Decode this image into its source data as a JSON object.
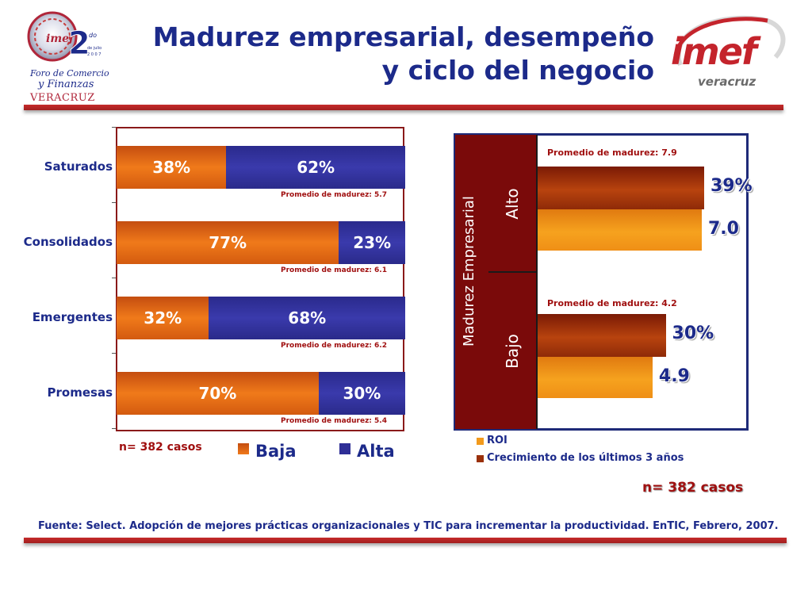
{
  "title": {
    "line1": "Madurez empresarial, desempeño",
    "line2": "y ciclo del negocio"
  },
  "logo_left": {
    "big_number": "2",
    "superscript": "do",
    "small_text": "de julio",
    "year": "2 0 0 7",
    "forum_line1": "Foro de Comercio",
    "forum_line2": "y Finanzas",
    "city": "VERACRUZ"
  },
  "logo_right": {
    "brand": "imef",
    "city": "veracruz"
  },
  "left_chart": {
    "n_label": "n= 382 casos",
    "legend": [
      {
        "label": "Baja",
        "color": "#e8661a"
      },
      {
        "label": "Alta",
        "color": "#2e2e96"
      }
    ]
  },
  "right_chart": {
    "axis_title": "Madurez Empresarial",
    "group_labels": [
      "Alto",
      "Bajo"
    ],
    "legend": [
      {
        "label": "ROI",
        "color": "#f29a1c"
      },
      {
        "label": "Crecimiento de los últimos 3 años",
        "color": "#9a300a"
      }
    ],
    "n_label": "n= 382 casos"
  },
  "footer": "Fuente: Select. Adopción de mejores prácticas organizacionales y TIC para incrementar la productividad. EnTIC, Febrero, 2007.",
  "chart_data": [
    {
      "type": "bar",
      "orientation": "horizontal",
      "stacked": true,
      "percent": true,
      "categories": [
        "Saturados",
        "Consolidados",
        "Emergentes",
        "Promesas"
      ],
      "series": [
        {
          "name": "Baja",
          "values": [
            38,
            77,
            32,
            70
          ],
          "labels": [
            "38%",
            "77%",
            "32%",
            "70%"
          ]
        },
        {
          "name": "Alta",
          "values": [
            62,
            23,
            68,
            30
          ],
          "labels": [
            "62%",
            "23%",
            "68%",
            "30%"
          ]
        }
      ],
      "annotations": [
        "Promedio de madurez: 5.7",
        "Promedio de madurez: 6.1",
        "Promedio de madurez: 6.2",
        "Promedio de madurez: 5.4"
      ],
      "xlim": [
        0,
        100
      ],
      "legend": "bottom"
    },
    {
      "type": "bar",
      "orientation": "horizontal",
      "categories": [
        "Alto",
        "Bajo"
      ],
      "group_axis_label": "Madurez Empresarial",
      "series": [
        {
          "name": "Crecimiento de los últimos 3 años",
          "values": [
            39,
            30
          ],
          "labels": [
            "39%",
            "30%"
          ]
        },
        {
          "name": "ROI",
          "values": [
            7.0,
            4.9
          ],
          "labels": [
            "7.0",
            "4.9"
          ]
        }
      ],
      "annotations": [
        "Promedio de madurez: 7.9",
        "Promedio de madurez: 4.2"
      ],
      "legend": "bottom-left"
    }
  ]
}
